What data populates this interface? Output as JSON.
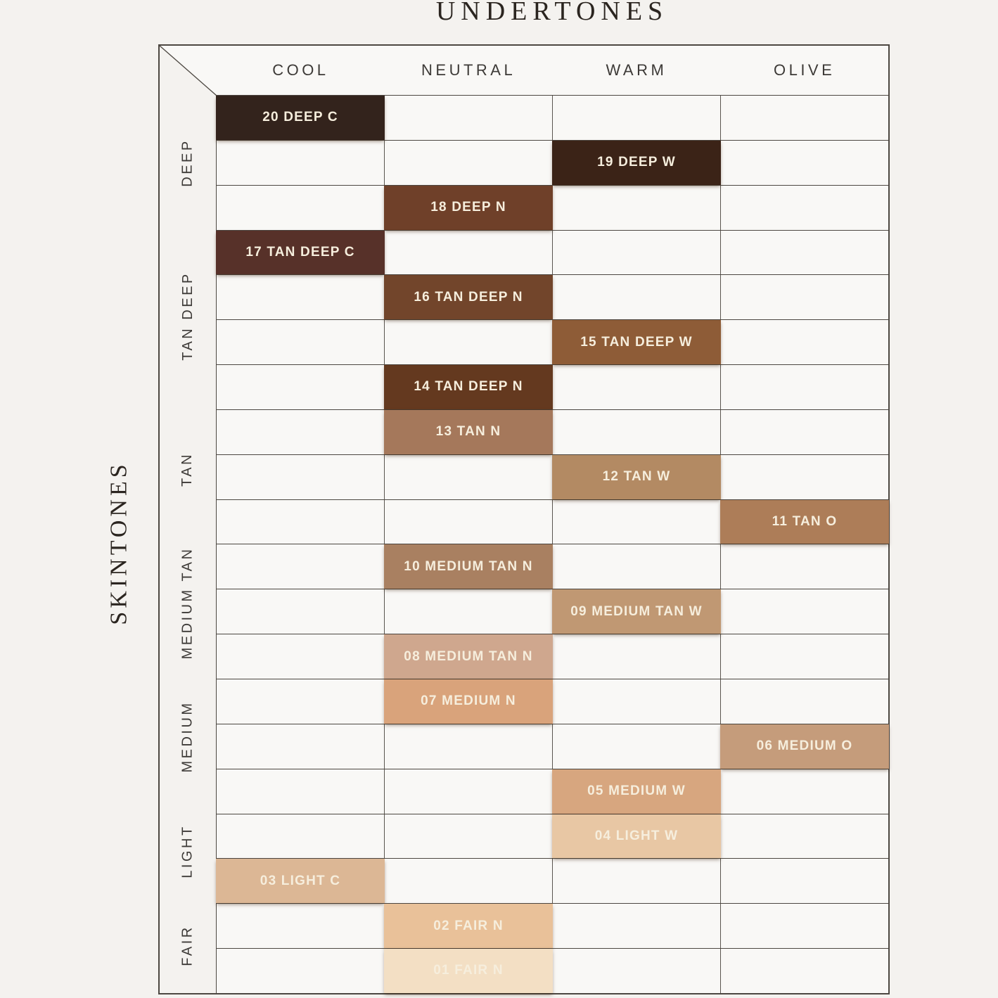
{
  "title": "UNDERTONES",
  "side_title": "SKINTONES",
  "colors": {
    "page_bg": "#f4f2ef",
    "cell_bg": "#f9f8f6",
    "grid_line": "#4c4741",
    "column_line": "#5a554f",
    "title_text": "#2b2520",
    "header_text": "#3d3a37",
    "swatch_text": "#f6eedd"
  },
  "chart_data": {
    "type": "table",
    "title": "UNDERTONES",
    "row_axis_label": "SKINTONES",
    "columns": [
      "COOL",
      "NEUTRAL",
      "WARM",
      "OLIVE"
    ],
    "row_groups": [
      {
        "label": "DEEP",
        "row_count": 3
      },
      {
        "label": "TAN DEEP",
        "row_count": 4
      },
      {
        "label": "TAN",
        "row_count": 3
      },
      {
        "label": "MEDIUM TAN",
        "row_count": 3
      },
      {
        "label": "MEDIUM",
        "row_count": 3
      },
      {
        "label": "LIGHT",
        "row_count": 2
      },
      {
        "label": "FAIR",
        "row_count": 2
      }
    ],
    "rows": [
      {
        "shade": "20 DEEP C",
        "group": "DEEP",
        "undertone": "COOL",
        "color": "#33231c"
      },
      {
        "shade": "19 DEEP W",
        "group": "DEEP",
        "undertone": "WARM",
        "color": "#3b2317"
      },
      {
        "shade": "18 DEEP N",
        "group": "DEEP",
        "undertone": "NEUTRAL",
        "color": "#6f4029"
      },
      {
        "shade": "17 TAN DEEP C",
        "group": "TAN DEEP",
        "undertone": "COOL",
        "color": "#573129"
      },
      {
        "shade": "16 TAN DEEP N",
        "group": "TAN DEEP",
        "undertone": "NEUTRAL",
        "color": "#72452b"
      },
      {
        "shade": "15 TAN DEEP W",
        "group": "TAN DEEP",
        "undertone": "WARM",
        "color": "#8e5c37"
      },
      {
        "shade": "14 TAN DEEP N",
        "group": "TAN DEEP",
        "undertone": "NEUTRAL",
        "color": "#64391f"
      },
      {
        "shade": "13 TAN N",
        "group": "TAN",
        "undertone": "NEUTRAL",
        "color": "#a5785b"
      },
      {
        "shade": "12 TAN W",
        "group": "TAN",
        "undertone": "WARM",
        "color": "#b38a63"
      },
      {
        "shade": "11 TAN O",
        "group": "TAN",
        "undertone": "OLIVE",
        "color": "#ad7d58"
      },
      {
        "shade": "10 MEDIUM TAN N",
        "group": "MEDIUM TAN",
        "undertone": "NEUTRAL",
        "color": "#a98061"
      },
      {
        "shade": "09 MEDIUM TAN W",
        "group": "MEDIUM TAN",
        "undertone": "WARM",
        "color": "#c09873"
      },
      {
        "shade": "08 MEDIUM TAN N",
        "group": "MEDIUM TAN",
        "undertone": "NEUTRAL",
        "color": "#cfa78e"
      },
      {
        "shade": "07 MEDIUM N",
        "group": "MEDIUM",
        "undertone": "NEUTRAL",
        "color": "#d9a37b"
      },
      {
        "shade": "06 MEDIUM O",
        "group": "MEDIUM",
        "undertone": "OLIVE",
        "color": "#c59c7b"
      },
      {
        "shade": "05 MEDIUM W",
        "group": "MEDIUM",
        "undertone": "WARM",
        "color": "#d7a67f"
      },
      {
        "shade": "04 LIGHT W",
        "group": "LIGHT",
        "undertone": "WARM",
        "color": "#e8c7a4"
      },
      {
        "shade": "03 LIGHT C",
        "group": "LIGHT",
        "undertone": "COOL",
        "color": "#dcb795"
      },
      {
        "shade": "02 FAIR N",
        "group": "FAIR",
        "undertone": "NEUTRAL",
        "color": "#e9c199"
      },
      {
        "shade": "01 FAIR N",
        "group": "FAIR",
        "undertone": "NEUTRAL",
        "color": "#f3dfc4"
      }
    ]
  }
}
